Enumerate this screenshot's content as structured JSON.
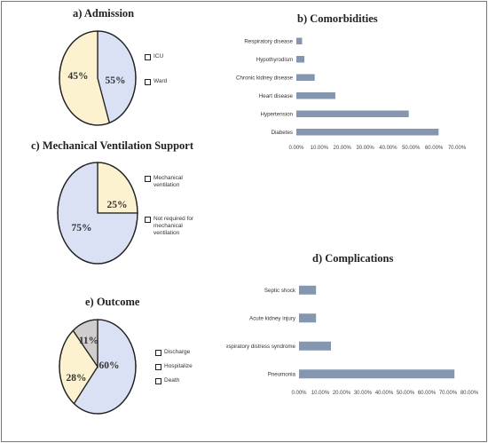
{
  "colors": {
    "blue": "#dae1f4",
    "yellow": "#fdf2cf",
    "grey": "#d0cdcd",
    "bar": "#8496b0",
    "stroke": "#222222"
  },
  "chart_data": [
    {
      "id": "admission",
      "type": "pie",
      "title": "a) Admission",
      "slices": [
        {
          "name": "ICU",
          "value": 45,
          "label": "45%",
          "color": "#dae1f4"
        },
        {
          "name": "Ward",
          "value": 55,
          "label": "55%",
          "color": "#fdf2cf"
        }
      ],
      "legend": [
        "ICU",
        "Ward"
      ]
    },
    {
      "id": "comorbidities",
      "type": "bar",
      "orientation": "horizontal",
      "title": "b) Comorbidities",
      "categories": [
        "Diabetes",
        "Hypertension",
        "Heart disease",
        "Chronic kidney disease",
        "Hypothyrodism",
        "Respiratory disease"
      ],
      "values": [
        0.62,
        0.49,
        0.17,
        0.08,
        0.035,
        0.025
      ],
      "xlim": [
        0,
        0.7
      ],
      "xticks": [
        "0.00%",
        "10.00%",
        "20.00%",
        "30.00%",
        "40.00%",
        "50.00%",
        "60.00%",
        "70.00%"
      ]
    },
    {
      "id": "ventilation",
      "type": "pie",
      "title": "c) Mechanical Ventilation Support",
      "slices": [
        {
          "name": "Mechanical ventilation",
          "value": 25,
          "label": "25%",
          "color": "#fdf2cf"
        },
        {
          "name": "Not required for mechanical ventilation",
          "value": 75,
          "label": "75%",
          "color": "#dae1f4"
        }
      ],
      "legend": [
        "Mechanical ventilation",
        "Not required for mechanical ventilation"
      ]
    },
    {
      "id": "complications",
      "type": "bar",
      "orientation": "horizontal",
      "title": "d) Complications",
      "categories": [
        "Pneumonia",
        "Acute respiratory distress syndrome",
        "Acute kidney injury",
        "Septic shock"
      ],
      "values": [
        0.73,
        0.15,
        0.08,
        0.08
      ],
      "xlim": [
        0,
        0.8
      ],
      "xticks": [
        "0.00%",
        "10.00%",
        "20.00%",
        "30.00%",
        "40.00%",
        "50.00%",
        "60.00%",
        "70.00%",
        "80.00%"
      ]
    },
    {
      "id": "outcome",
      "type": "pie",
      "title": "e) Outcome",
      "slices": [
        {
          "name": "Discharge",
          "value": 60,
          "label": "60%",
          "color": "#dae1f4"
        },
        {
          "name": "Hospitalize",
          "value": 28,
          "label": "28%",
          "color": "#fdf2cf"
        },
        {
          "name": "Death",
          "value": 11,
          "label": "11%",
          "color": "#d0cdcd"
        }
      ],
      "legend": [
        "Discharge",
        "Hospitalize",
        "Death"
      ]
    }
  ]
}
